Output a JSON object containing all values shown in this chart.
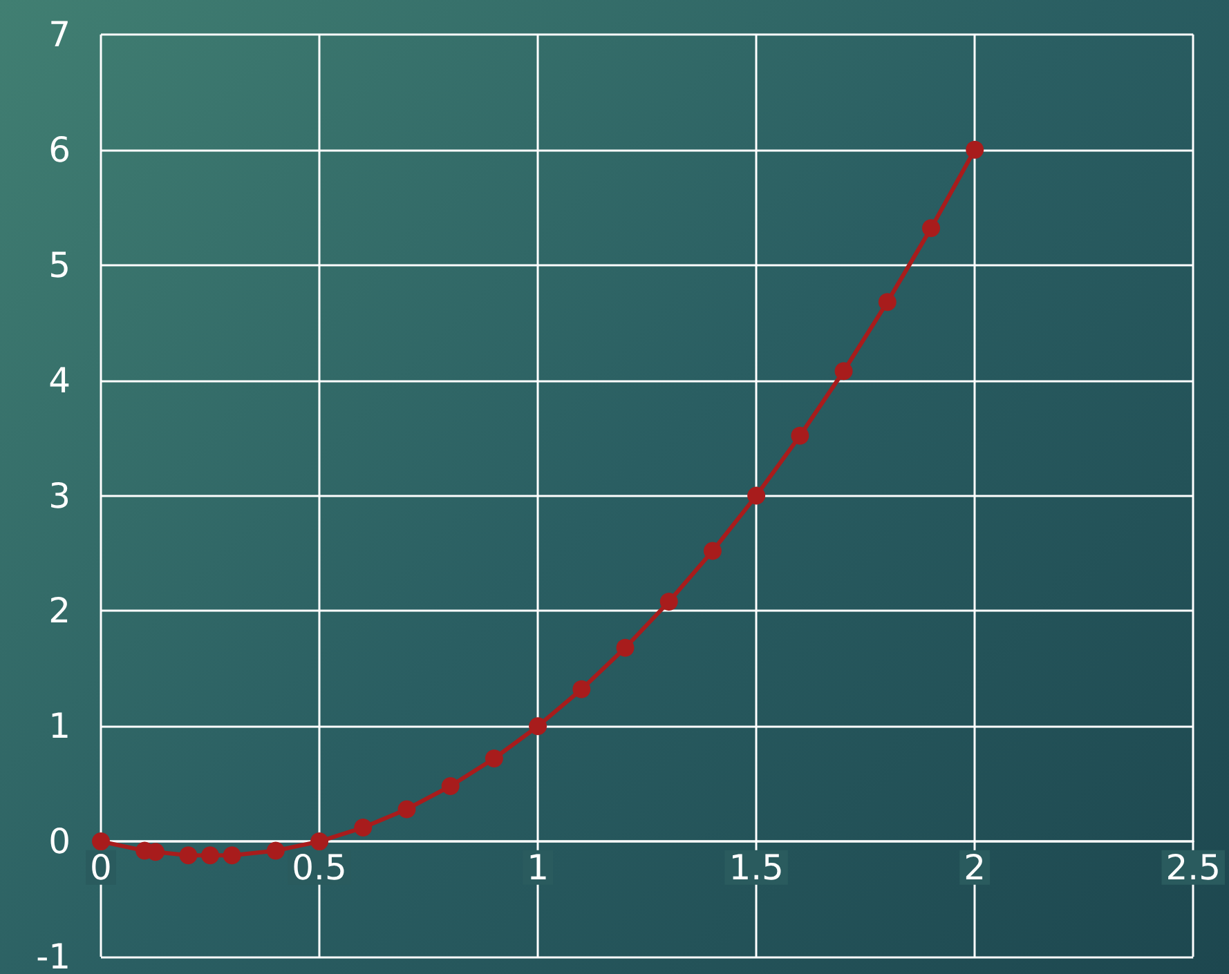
{
  "chart_data": {
    "type": "line",
    "x": [
      0,
      0.1,
      0.125,
      0.2,
      0.25,
      0.3,
      0.4,
      0.5,
      0.6,
      0.7,
      0.8,
      0.9,
      1,
      1.1,
      1.2,
      1.3,
      1.4,
      1.5,
      1.6,
      1.7,
      1.8,
      1.9,
      2
    ],
    "series": [
      {
        "color": "#a81c1c",
        "values": [
          0,
          -0.08,
          -0.09,
          -0.12,
          -0.12,
          -0.12,
          -0.08,
          0,
          0.12,
          0.28,
          0.48,
          0.72,
          1,
          1.32,
          1.68,
          2.08,
          2.52,
          3,
          3.52,
          4.08,
          4.68,
          5.32,
          6
        ]
      }
    ],
    "xlim": [
      0,
      2.5
    ],
    "xticks": [
      0,
      0.5,
      1,
      1.5,
      2,
      2.5
    ],
    "ylim": [
      -1,
      7
    ],
    "yticks": [
      -1,
      0,
      1,
      2,
      3,
      4,
      5,
      6,
      7
    ],
    "grid": true,
    "marker": "circle",
    "line_style": "solid"
  }
}
